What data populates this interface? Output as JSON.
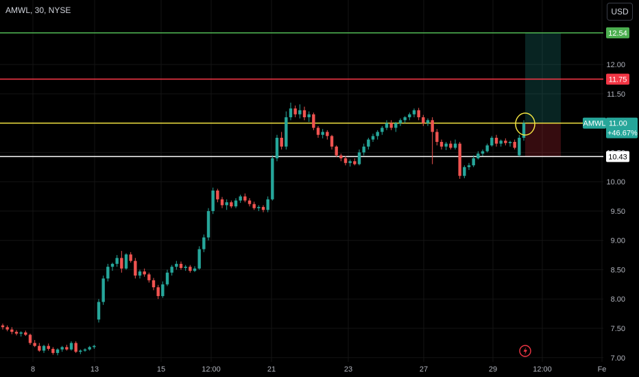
{
  "header": {
    "symbol": "AMWL, 30, NYSE",
    "currency": "USD"
  },
  "colors": {
    "up": "#26a69a",
    "down": "#ef5350",
    "target": "#4caf50",
    "stop": "#f23645",
    "entry": "#f5e642",
    "support": "#ffffff"
  },
  "chart_data": {
    "type": "candlestick",
    "ylim": [
      6.67,
      13.1
    ],
    "y_ticks": [
      "7.00",
      "7.50",
      "8.00",
      "8.50",
      "9.00",
      "9.50",
      "10.00",
      "10.50",
      "11.00",
      "11.50",
      "12.00"
    ],
    "x_ticks": [
      "8",
      "13",
      "15",
      "12:00",
      "21",
      "23",
      "27",
      "29",
      "12:00",
      "Fe"
    ],
    "levels": [
      {
        "value": 12.54,
        "label": "12.54",
        "role": "target"
      },
      {
        "value": 11.75,
        "label": "11.75",
        "role": "stop"
      },
      {
        "value": 11.0,
        "label": "11.00",
        "role": "entry"
      },
      {
        "value": 10.43,
        "label": "10.43",
        "role": "support"
      }
    ],
    "last_price": {
      "symbol": "AMWL",
      "price": "11.00",
      "change": "+46.67%"
    },
    "candles": [
      [
        7.55,
        7.58,
        7.48,
        7.52
      ],
      [
        7.52,
        7.55,
        7.45,
        7.48
      ],
      [
        7.48,
        7.52,
        7.4,
        7.44
      ],
      [
        7.44,
        7.47,
        7.38,
        7.41
      ],
      [
        7.41,
        7.45,
        7.36,
        7.43
      ],
      [
        7.43,
        7.46,
        7.37,
        7.39
      ],
      [
        7.39,
        7.41,
        7.22,
        7.25
      ],
      [
        7.25,
        7.3,
        7.18,
        7.2
      ],
      [
        7.2,
        7.25,
        7.1,
        7.12
      ],
      [
        7.12,
        7.22,
        7.08,
        7.2
      ],
      [
        7.2,
        7.24,
        7.12,
        7.15
      ],
      [
        7.15,
        7.18,
        7.05,
        7.08
      ],
      [
        7.08,
        7.16,
        7.04,
        7.14
      ],
      [
        7.14,
        7.2,
        7.1,
        7.18
      ],
      [
        7.18,
        7.22,
        7.12,
        7.14
      ],
      [
        7.14,
        7.28,
        7.12,
        7.25
      ],
      [
        7.25,
        7.28,
        7.08,
        7.1
      ],
      [
        7.1,
        7.14,
        7.06,
        7.12
      ],
      [
        7.12,
        7.16,
        7.1,
        7.14
      ],
      [
        7.14,
        7.2,
        7.12,
        7.18
      ],
      [
        7.18,
        7.22,
        7.15,
        7.2
      ],
      [
        7.65,
        8.0,
        7.6,
        7.95
      ],
      [
        7.95,
        8.4,
        7.9,
        8.35
      ],
      [
        8.35,
        8.6,
        8.3,
        8.55
      ],
      [
        8.55,
        8.62,
        8.48,
        8.6
      ],
      [
        8.6,
        8.75,
        8.55,
        8.7
      ],
      [
        8.7,
        8.82,
        8.45,
        8.52
      ],
      [
        8.52,
        8.78,
        8.5,
        8.76
      ],
      [
        8.76,
        8.8,
        8.62,
        8.65
      ],
      [
        8.65,
        8.7,
        8.35,
        8.4
      ],
      [
        8.4,
        8.5,
        8.35,
        8.47
      ],
      [
        8.47,
        8.52,
        8.38,
        8.42
      ],
      [
        8.42,
        8.45,
        8.28,
        8.32
      ],
      [
        8.32,
        8.36,
        8.15,
        8.2
      ],
      [
        8.2,
        8.24,
        8.0,
        8.05
      ],
      [
        8.05,
        8.3,
        8.02,
        8.25
      ],
      [
        8.25,
        8.5,
        8.22,
        8.45
      ],
      [
        8.45,
        8.58,
        8.4,
        8.55
      ],
      [
        8.55,
        8.65,
        8.5,
        8.6
      ],
      [
        8.6,
        8.64,
        8.5,
        8.53
      ],
      [
        8.53,
        8.58,
        8.48,
        8.55
      ],
      [
        8.55,
        8.58,
        8.45,
        8.48
      ],
      [
        8.48,
        8.56,
        8.46,
        8.52
      ],
      [
        8.52,
        8.9,
        8.5,
        8.85
      ],
      [
        8.85,
        9.1,
        8.8,
        9.05
      ],
      [
        9.05,
        9.55,
        9.0,
        9.5
      ],
      [
        9.5,
        9.9,
        9.45,
        9.85
      ],
      [
        9.85,
        9.88,
        9.65,
        9.7
      ],
      [
        9.7,
        9.74,
        9.55,
        9.6
      ],
      [
        9.6,
        9.7,
        9.52,
        9.65
      ],
      [
        9.65,
        9.68,
        9.55,
        9.58
      ],
      [
        9.58,
        9.72,
        9.55,
        9.68
      ],
      [
        9.68,
        9.78,
        9.64,
        9.75
      ],
      [
        9.75,
        9.8,
        9.65,
        9.68
      ],
      [
        9.68,
        9.72,
        9.58,
        9.62
      ],
      [
        9.62,
        9.66,
        9.52,
        9.55
      ],
      [
        9.55,
        9.6,
        9.5,
        9.57
      ],
      [
        9.57,
        9.6,
        9.48,
        9.52
      ],
      [
        9.52,
        9.75,
        9.48,
        9.7
      ],
      [
        9.7,
        10.45,
        9.68,
        10.4
      ],
      [
        10.4,
        10.8,
        10.35,
        10.75
      ],
      [
        10.75,
        10.85,
        10.55,
        10.6
      ],
      [
        10.6,
        11.2,
        10.55,
        11.1
      ],
      [
        11.1,
        11.35,
        11.05,
        11.25
      ],
      [
        11.25,
        11.3,
        11.1,
        11.15
      ],
      [
        11.15,
        11.32,
        11.08,
        11.22
      ],
      [
        11.22,
        11.28,
        11.05,
        11.1
      ],
      [
        11.1,
        11.2,
        11.02,
        11.15
      ],
      [
        11.15,
        11.18,
        10.88,
        10.92
      ],
      [
        10.92,
        10.95,
        10.75,
        10.8
      ],
      [
        10.8,
        10.9,
        10.74,
        10.85
      ],
      [
        10.85,
        10.88,
        10.72,
        10.78
      ],
      [
        10.78,
        10.8,
        10.55,
        10.6
      ],
      [
        10.6,
        10.62,
        10.42,
        10.45
      ],
      [
        10.45,
        10.48,
        10.35,
        10.4
      ],
      [
        10.4,
        10.44,
        10.28,
        10.32
      ],
      [
        10.32,
        10.38,
        10.26,
        10.35
      ],
      [
        10.35,
        10.4,
        10.28,
        10.3
      ],
      [
        10.3,
        10.55,
        10.28,
        10.5
      ],
      [
        10.5,
        10.65,
        10.45,
        10.6
      ],
      [
        10.6,
        10.75,
        10.55,
        10.72
      ],
      [
        10.72,
        10.82,
        10.68,
        10.78
      ],
      [
        10.78,
        10.88,
        10.72,
        10.85
      ],
      [
        10.85,
        10.95,
        10.8,
        10.92
      ],
      [
        10.92,
        11.05,
        10.88,
        11.0
      ],
      [
        11.0,
        11.05,
        10.88,
        10.92
      ],
      [
        10.92,
        11.02,
        10.85,
        11.0
      ],
      [
        11.0,
        11.08,
        10.95,
        11.05
      ],
      [
        11.05,
        11.12,
        11.0,
        11.1
      ],
      [
        11.1,
        11.18,
        11.05,
        11.15
      ],
      [
        11.15,
        11.25,
        11.1,
        11.22
      ],
      [
        11.22,
        11.26,
        11.05,
        11.1
      ],
      [
        11.1,
        11.14,
        10.95,
        11.0
      ],
      [
        11.0,
        11.08,
        10.95,
        11.05
      ],
      [
        11.05,
        11.1,
        10.3,
        10.85
      ],
      [
        10.85,
        10.9,
        10.62,
        10.68
      ],
      [
        10.68,
        10.72,
        10.55,
        10.6
      ],
      [
        10.6,
        10.68,
        10.54,
        10.65
      ],
      [
        10.65,
        10.7,
        10.55,
        10.58
      ],
      [
        10.58,
        10.72,
        10.55,
        10.65
      ],
      [
        10.65,
        10.68,
        10.05,
        10.1
      ],
      [
        10.1,
        10.28,
        10.06,
        10.25
      ],
      [
        10.25,
        10.32,
        10.2,
        10.28
      ],
      [
        10.28,
        10.45,
        10.25,
        10.4
      ],
      [
        10.4,
        10.52,
        10.38,
        10.48
      ],
      [
        10.48,
        10.55,
        10.44,
        10.52
      ],
      [
        10.52,
        10.65,
        10.5,
        10.62
      ],
      [
        10.62,
        10.78,
        10.6,
        10.75
      ],
      [
        10.75,
        10.8,
        10.6,
        10.65
      ],
      [
        10.65,
        10.72,
        10.6,
        10.7
      ],
      [
        10.7,
        10.74,
        10.62,
        10.66
      ],
      [
        10.66,
        10.7,
        10.6,
        10.68
      ],
      [
        10.68,
        10.72,
        10.55,
        10.58
      ],
      [
        10.45,
        10.8,
        10.43,
        10.75
      ],
      [
        10.75,
        11.05,
        10.7,
        11.0
      ]
    ]
  }
}
